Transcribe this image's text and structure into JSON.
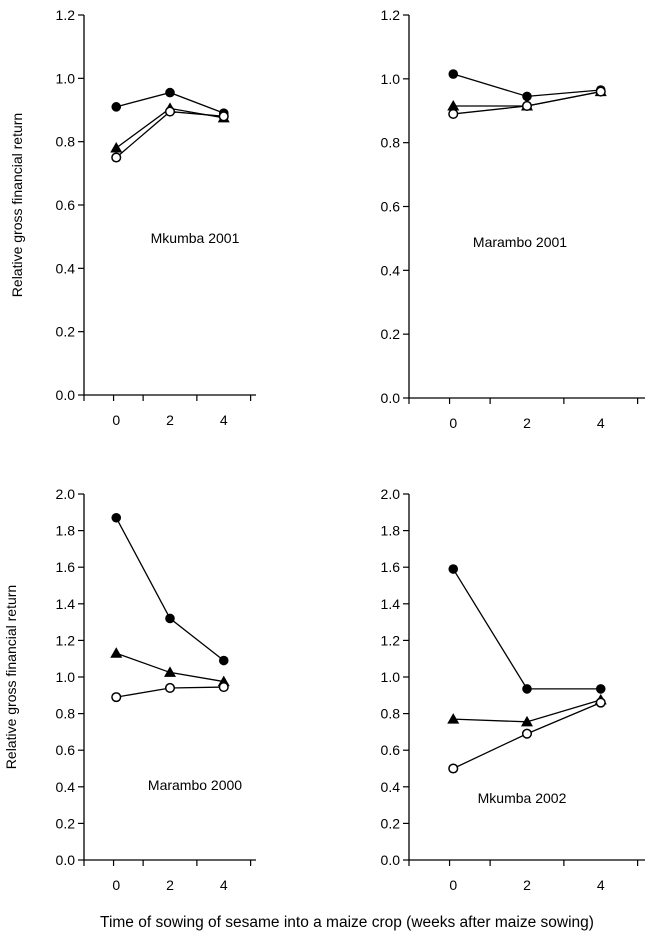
{
  "figure": {
    "xlabel": "Time of sowing of sesame into a maize crop (weeks after maize sowing)",
    "ylabel": "Relative gross financial return"
  },
  "chart_data": [
    {
      "type": "line",
      "title": "Mkumba 2001",
      "x": [
        0,
        2,
        4
      ],
      "xticks": [
        0,
        2,
        4
      ],
      "xlim": [
        -1.2,
        5.2
      ],
      "ylim": [
        0,
        1.2
      ],
      "yticks": [
        "0.0",
        "0.2",
        "0.4",
        "0.6",
        "0.8",
        "1.0",
        "1.2"
      ],
      "ylabel": "Relative gross financial return",
      "series": [
        {
          "marker": "filled-circle",
          "values": [
            0.91,
            0.955,
            0.89
          ]
        },
        {
          "marker": "filled-triangle",
          "values": [
            0.78,
            0.905,
            0.875
          ]
        },
        {
          "marker": "open-circle",
          "values": [
            0.75,
            0.895,
            0.88
          ]
        }
      ]
    },
    {
      "type": "line",
      "title": "Marambo 2001",
      "x": [
        0,
        2,
        4
      ],
      "xticks": [
        0,
        2,
        4
      ],
      "xlim": [
        -1.2,
        5.2
      ],
      "ylim": [
        0,
        1.2
      ],
      "yticks": [
        "0.0",
        "0.2",
        "0.4",
        "0.6",
        "0.8",
        "1.0",
        "1.2"
      ],
      "ylabel": "",
      "series": [
        {
          "marker": "filled-circle",
          "values": [
            1.015,
            0.945,
            0.965
          ]
        },
        {
          "marker": "filled-triangle",
          "values": [
            0.915,
            0.915,
            0.96
          ]
        },
        {
          "marker": "open-circle",
          "values": [
            0.89,
            0.915,
            0.96
          ]
        }
      ]
    },
    {
      "type": "line",
      "title": "Marambo 2000",
      "x": [
        0,
        2,
        4
      ],
      "xticks": [
        0,
        2,
        4
      ],
      "xlim": [
        -1.2,
        5.2
      ],
      "ylim": [
        0,
        2.0
      ],
      "yticks": [
        "0.0",
        "0.2",
        "0.4",
        "0.6",
        "0.8",
        "1.0",
        "1.2",
        "1.4",
        "1.6",
        "1.8",
        "2.0"
      ],
      "ylabel": "Relative gross financial return",
      "series": [
        {
          "marker": "filled-circle",
          "values": [
            1.87,
            1.32,
            1.09
          ]
        },
        {
          "marker": "filled-triangle",
          "values": [
            1.13,
            1.025,
            0.975
          ]
        },
        {
          "marker": "open-circle",
          "values": [
            0.89,
            0.94,
            0.945
          ]
        }
      ]
    },
    {
      "type": "line",
      "title": "Mkumba 2002",
      "x": [
        0,
        2,
        4
      ],
      "xticks": [
        0,
        2,
        4
      ],
      "xlim": [
        -1.2,
        5.2
      ],
      "ylim": [
        0,
        2.0
      ],
      "yticks": [
        "0.0",
        "0.2",
        "0.4",
        "0.6",
        "0.8",
        "1.0",
        "1.2",
        "1.4",
        "1.6",
        "1.8",
        "2.0"
      ],
      "ylabel": "",
      "series": [
        {
          "marker": "filled-circle",
          "values": [
            1.59,
            0.935,
            0.935
          ]
        },
        {
          "marker": "filled-triangle",
          "values": [
            0.77,
            0.755,
            0.875
          ]
        },
        {
          "marker": "open-circle",
          "values": [
            0.5,
            0.69,
            0.86
          ]
        }
      ]
    }
  ]
}
